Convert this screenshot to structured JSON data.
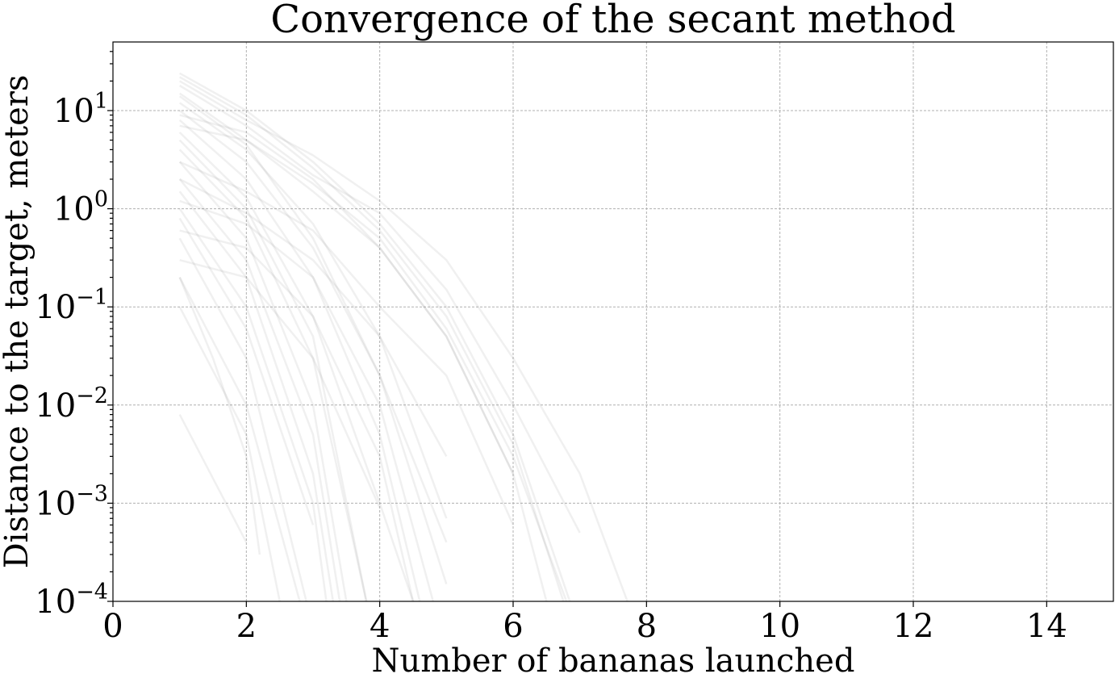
{
  "chart_data": {
    "type": "line",
    "title": "Convergence of the secant method",
    "xlabel": "Number of bananas launched",
    "ylabel": "Distance to the target, meters",
    "xlim": [
      0,
      15
    ],
    "ylim": [
      0.0001,
      50
    ],
    "y_scale": "log",
    "grid": true,
    "x_ticks": [
      0,
      2,
      4,
      6,
      8,
      10,
      12,
      14
    ],
    "y_ticks": [
      {
        "value": 0.0001,
        "base": "10",
        "exp": "−4"
      },
      {
        "value": 0.001,
        "base": "10",
        "exp": "−3"
      },
      {
        "value": 0.01,
        "base": "10",
        "exp": "−2"
      },
      {
        "value": 0.1,
        "base": "10",
        "exp": "−1"
      },
      {
        "value": 1,
        "base": "10",
        "exp": "0"
      },
      {
        "value": 10,
        "base": "10",
        "exp": "1"
      }
    ],
    "line_color": "#808080",
    "series": [
      {
        "x": [
          1,
          2,
          3,
          4,
          5,
          6,
          7
        ],
        "y": [
          24,
          10,
          3,
          0.7,
          0.1,
          0.005,
          5e-05
        ]
      },
      {
        "x": [
          1,
          2,
          3,
          4,
          5,
          6,
          7
        ],
        "y": [
          22,
          9,
          2.6,
          0.6,
          0.08,
          0.004,
          3e-05
        ]
      },
      {
        "x": [
          1,
          2,
          3,
          4,
          5,
          6,
          7,
          8
        ],
        "y": [
          20,
          8,
          3.5,
          1.2,
          0.3,
          0.03,
          0.002,
          3e-05
        ]
      },
      {
        "x": [
          1,
          2,
          3,
          4,
          5,
          6,
          7
        ],
        "y": [
          18,
          7,
          2.2,
          0.9,
          0.15,
          0.01,
          0.0005
        ]
      },
      {
        "x": [
          1,
          2,
          3,
          4,
          5,
          6
        ],
        "y": [
          15,
          5,
          1.5,
          0.4,
          0.05,
          0.002
        ]
      },
      {
        "x": [
          1,
          2,
          3,
          4,
          5
        ],
        "y": [
          14,
          4.5,
          0.5,
          0.02,
          0.00015
        ]
      },
      {
        "x": [
          1,
          2,
          3,
          4,
          5
        ],
        "y": [
          12,
          4,
          0.7,
          0.05,
          0.0007
        ]
      },
      {
        "x": [
          1,
          2,
          3,
          4,
          5
        ],
        "y": [
          10,
          3,
          0.4,
          0.02,
          0.0004
        ]
      },
      {
        "x": [
          1,
          2,
          3,
          4,
          4.6
        ],
        "y": [
          8,
          2,
          0.2,
          0.005,
          0.0001
        ]
      },
      {
        "x": [
          1,
          2,
          3,
          4,
          4.5
        ],
        "y": [
          6,
          1.3,
          0.08,
          0.001,
          0.0001
        ]
      },
      {
        "x": [
          1,
          2,
          3,
          3.8
        ],
        "y": [
          5,
          1,
          0.05,
          0.0001
        ]
      },
      {
        "x": [
          1,
          2,
          3,
          3.8
        ],
        "y": [
          4,
          0.8,
          0.03,
          0.0001
        ]
      },
      {
        "x": [
          1,
          2,
          3,
          3.5
        ],
        "y": [
          3,
          0.5,
          0.01,
          0.0001
        ]
      },
      {
        "x": [
          1,
          2,
          3,
          3.4
        ],
        "y": [
          2,
          0.3,
          0.005,
          0.0001
        ]
      },
      {
        "x": [
          1,
          2,
          3,
          3.3
        ],
        "y": [
          1.5,
          0.2,
          0.002,
          0.0001
        ]
      },
      {
        "x": [
          1,
          2,
          3,
          3.2
        ],
        "y": [
          1,
          0.1,
          0.001,
          0.0001
        ]
      },
      {
        "x": [
          1,
          2,
          3
        ],
        "y": [
          0.8,
          0.06,
          0.0006
        ]
      },
      {
        "x": [
          1,
          2,
          2.9
        ],
        "y": [
          0.5,
          0.03,
          0.0001
        ]
      },
      {
        "x": [
          1,
          2,
          2.8
        ],
        "y": [
          0.2,
          0.01,
          0.0001
        ]
      },
      {
        "x": [
          1,
          2,
          2.5
        ],
        "y": [
          0.1,
          0.005,
          0.0001
        ]
      },
      {
        "x": [
          1,
          2,
          3,
          4,
          5,
          6,
          6.5
        ],
        "y": [
          9,
          6,
          2,
          0.4,
          0.05,
          0.002,
          0.0001
        ]
      },
      {
        "x": [
          1,
          2,
          3,
          4,
          5,
          6,
          6.8
        ],
        "y": [
          7,
          5,
          1.8,
          0.5,
          0.06,
          0.003,
          0.0001
        ]
      },
      {
        "x": [
          1,
          2,
          3,
          4,
          5,
          6
        ],
        "y": [
          3,
          1.5,
          0.6,
          0.1,
          0.02,
          0.0006
        ]
      },
      {
        "x": [
          1,
          2,
          3,
          4,
          5
        ],
        "y": [
          2,
          0.9,
          0.3,
          0.05,
          0.003
        ]
      },
      {
        "x": [
          1,
          2,
          3,
          4,
          4.8
        ],
        "y": [
          1.2,
          0.7,
          0.2,
          0.01,
          0.0001
        ]
      },
      {
        "x": [
          1,
          2,
          3,
          4,
          4.5
        ],
        "y": [
          0.6,
          0.4,
          0.08,
          0.003,
          0.0001
        ]
      },
      {
        "x": [
          1,
          2,
          3,
          4
        ],
        "y": [
          0.3,
          0.2,
          0.03,
          0.0009
        ]
      },
      {
        "x": [
          1,
          1.5,
          2,
          2.2
        ],
        "y": [
          0.2,
          0.03,
          0.003,
          0.0003
        ]
      },
      {
        "x": [
          1,
          2
        ],
        "y": [
          0.008,
          0.0004
        ]
      }
    ]
  }
}
